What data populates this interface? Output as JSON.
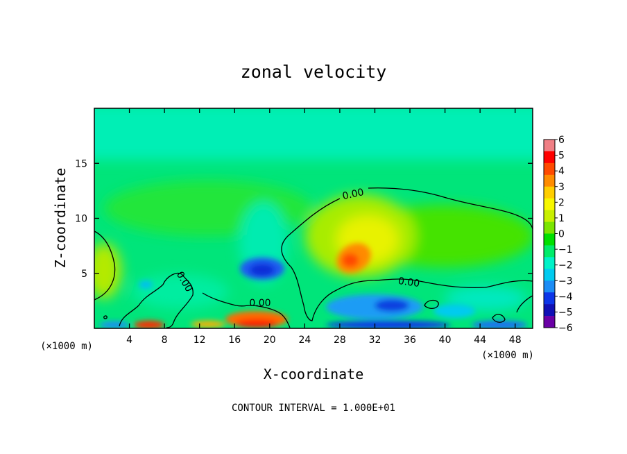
{
  "chart_data": {
    "type": "heatmap",
    "title": "zonal velocity",
    "xlabel": "X-coordinate",
    "ylabel": "Z-coordinate",
    "x_unit": "(×1000 m)",
    "footer": "CONTOUR INTERVAL = 1.000E+01",
    "xlim": [
      0,
      50
    ],
    "ylim": [
      0,
      20
    ],
    "x_ticks": [
      4,
      8,
      12,
      16,
      20,
      24,
      28,
      32,
      36,
      40,
      44,
      48
    ],
    "y_ticks": [
      5,
      10,
      15
    ],
    "contour_label": "0.00",
    "colorbar": {
      "ticks": [
        6,
        5,
        4,
        3,
        2,
        1,
        0,
        -1,
        -2,
        -3,
        -4,
        -5,
        -6
      ],
      "tick_labels": [
        "6",
        "5",
        "4",
        "3",
        "2",
        "1",
        "0",
        "−1",
        "−2",
        "−3",
        "−4",
        "−5",
        "−6"
      ],
      "colors": [
        "#f07f85",
        "#ff0000",
        "#ff4a00",
        "#ff8c00",
        "#ffce00",
        "#f7f700",
        "#c8ef00",
        "#7be500",
        "#00e000",
        "#00ec6a",
        "#00f2c8",
        "#00cbf0",
        "#1b8cf5",
        "#0c35e8",
        "#1010b5",
        "#6a00a5"
      ]
    }
  }
}
